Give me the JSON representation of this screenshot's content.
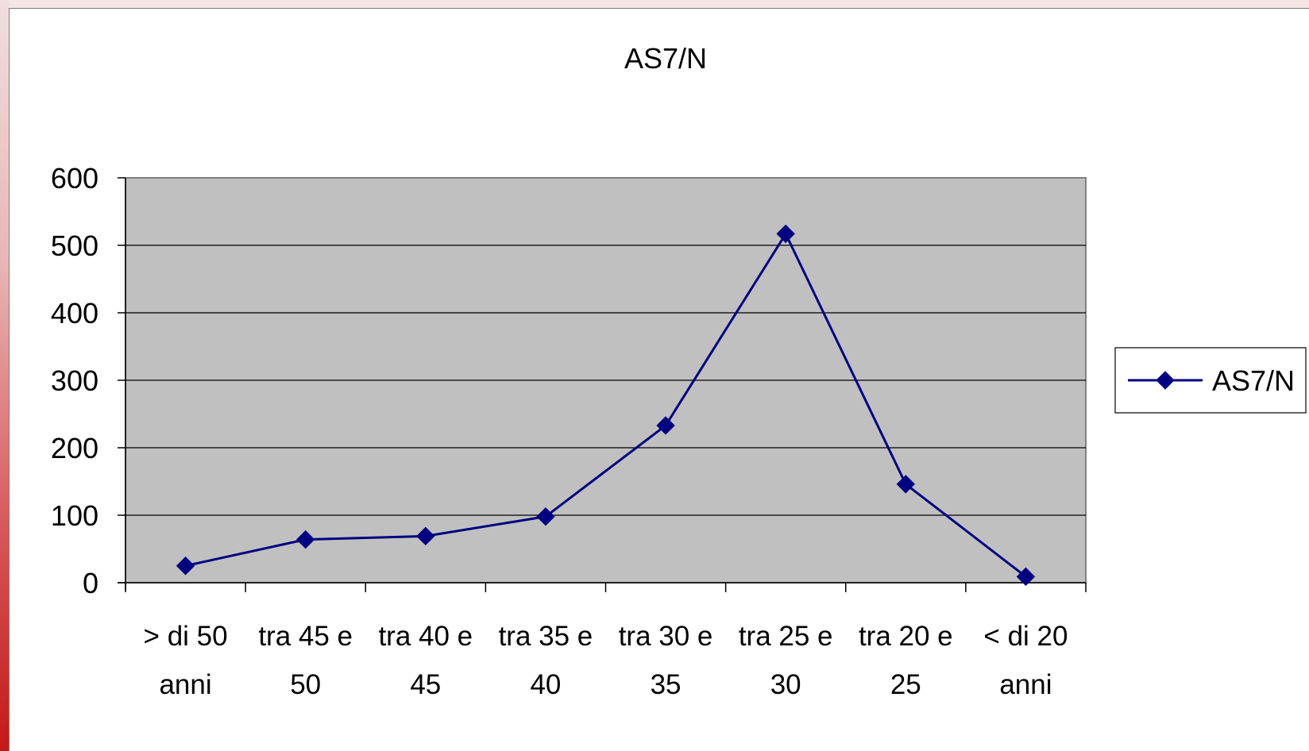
{
  "chart_data": {
    "type": "line",
    "title": "AS7/N",
    "categories": [
      [
        "> di 50",
        "anni"
      ],
      [
        "tra 45 e",
        "50"
      ],
      [
        "tra 40 e",
        "45"
      ],
      [
        "tra 35 e",
        "40"
      ],
      [
        "tra 30 e",
        "35"
      ],
      [
        "tra 25 e",
        "30"
      ],
      [
        "tra 20 e",
        "25"
      ],
      [
        "< di 20",
        "anni"
      ]
    ],
    "series": [
      {
        "name": "AS7/N",
        "values": [
          25,
          64,
          69,
          98,
          233,
          517,
          146,
          9
        ],
        "color": "#000080"
      }
    ],
    "ylim": [
      0,
      600
    ],
    "yticks": [
      0,
      100,
      200,
      300,
      400,
      500,
      600
    ],
    "xlabel": "",
    "ylabel": "",
    "grid": "horizontal",
    "plot_background": "#c0c0c0",
    "legend": "right"
  }
}
